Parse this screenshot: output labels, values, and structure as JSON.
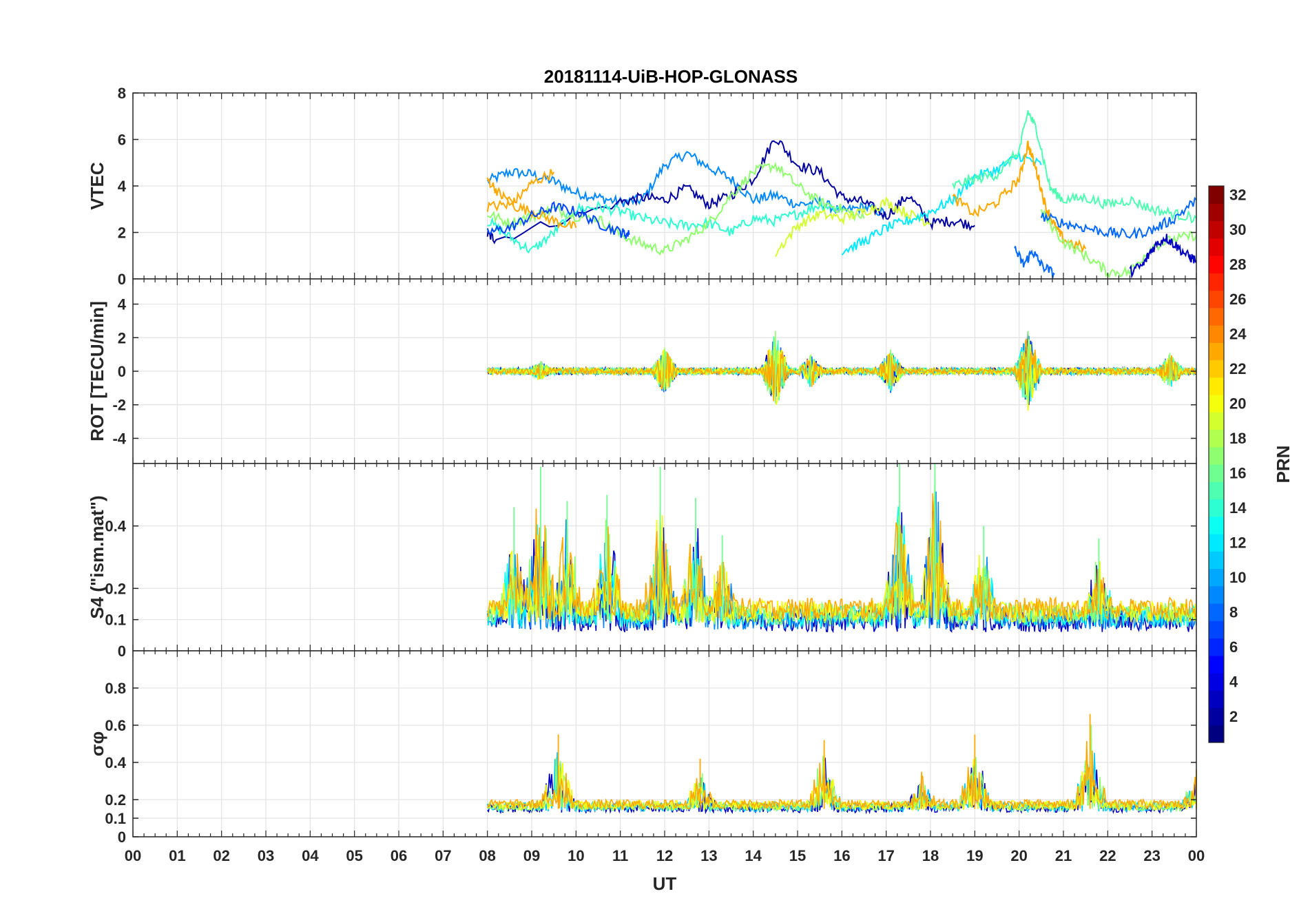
{
  "chart_data": {
    "type": "line",
    "title": "20181114-UiB-HOP-GLONASS",
    "xlabel": "UT",
    "x_ticks": [
      "00",
      "01",
      "02",
      "03",
      "04",
      "05",
      "06",
      "07",
      "08",
      "09",
      "10",
      "11",
      "12",
      "13",
      "14",
      "15",
      "16",
      "17",
      "18",
      "19",
      "20",
      "21",
      "22",
      "23",
      "00"
    ],
    "xlim": [
      0,
      24
    ],
    "grid": true,
    "panels": [
      {
        "name": "vtec",
        "ylabel": "VTEC",
        "ylim": [
          0,
          8
        ],
        "yticks": [
          0,
          2,
          4,
          6,
          8
        ],
        "series": [
          {
            "prn": 9,
            "x": [
              8.0,
              8.5,
              9.0,
              9.5,
              10.0,
              10.5,
              11.0,
              11.5,
              12.0,
              12.5,
              13.0,
              13.5,
              14.0,
              14.5,
              15.0,
              15.5,
              16.0,
              16.5,
              17.0
            ],
            "y": [
              4.2,
              4.6,
              4.5,
              4.2,
              3.7,
              3.5,
              3.3,
              3.4,
              4.9,
              5.4,
              4.8,
              4.3,
              3.4,
              3.6,
              3.2,
              3.3,
              2.9,
              3.1,
              2.8
            ]
          },
          {
            "prn": 2,
            "x": [
              8.0,
              8.2,
              11.0,
              11.5,
              12.0,
              12.5,
              13.0,
              13.5,
              14.0,
              14.5,
              15.0,
              15.5,
              16.0,
              16.5,
              17.0,
              17.5,
              18.0,
              18.5,
              19.0
            ],
            "y": [
              1.9,
              1.7,
              3.3,
              3.5,
              3.4,
              3.9,
              3.2,
              3.6,
              4.3,
              6.1,
              4.9,
              4.6,
              3.5,
              3.3,
              2.7,
              3.6,
              2.4,
              2.5,
              2.3
            ]
          },
          {
            "prn": 14,
            "x": [
              8.0,
              8.5,
              9.0,
              9.5,
              10.0,
              10.5,
              11.0,
              11.5,
              12.0,
              12.5,
              13.0,
              13.5,
              14.0,
              14.5,
              15.0,
              15.5,
              16.0
            ],
            "y": [
              2.5,
              1.8,
              1.2,
              2.0,
              3.0,
              3.1,
              2.9,
              2.6,
              2.4,
              2.3,
              2.4,
              2.0,
              2.6,
              2.5,
              2.8,
              3.2,
              3.0
            ]
          },
          {
            "prn": 17,
            "x": [
              8.0,
              8.5,
              9.0,
              9.5,
              10.0,
              10.5,
              11.0,
              11.5,
              12.0,
              12.5,
              13.0,
              13.5,
              14.0,
              14.5,
              15.0,
              15.5,
              16.0,
              16.5
            ],
            "y": [
              2.8,
              2.4,
              2.7,
              3.0,
              2.7,
              2.6,
              1.9,
              1.5,
              1.2,
              1.7,
              2.4,
              3.6,
              4.6,
              4.9,
              4.0,
              3.3,
              3.0,
              2.6
            ]
          },
          {
            "prn": 23,
            "x": [
              8.0,
              8.3,
              8.6,
              9.0,
              9.5
            ],
            "y": [
              4.3,
              3.6,
              3.3,
              4.1,
              4.6
            ]
          },
          {
            "prn": 23,
            "x": [
              8.0,
              8.5,
              9.0,
              9.5,
              10.0
            ],
            "y": [
              3.1,
              3.2,
              2.9,
              2.5,
              2.2
            ]
          },
          {
            "prn": 7,
            "x": [
              8.0,
              8.5,
              9.0,
              9.5,
              10.0,
              10.5,
              11.0,
              11.2
            ],
            "y": [
              2.0,
              2.2,
              2.7,
              3.1,
              2.9,
              2.4,
              2.0,
              1.9
            ]
          },
          {
            "prn": 19,
            "x": [
              14.5,
              15.0,
              15.5,
              16.0,
              16.5,
              17.0,
              17.5,
              18.0
            ],
            "y": [
              1.1,
              2.3,
              2.8,
              2.6,
              2.9,
              3.3,
              2.8,
              2.4
            ]
          },
          {
            "prn": 12,
            "x": [
              16.0,
              16.5,
              17.0,
              17.5,
              18.0,
              18.5,
              19.0,
              19.5,
              20.0,
              20.5
            ],
            "y": [
              1.2,
              1.6,
              2.2,
              2.5,
              2.9,
              3.4,
              4.4,
              4.7,
              5.3,
              4.9
            ]
          },
          {
            "prn": 15,
            "x": [
              18.5,
              19.0,
              19.5,
              20.0,
              20.2,
              20.4,
              20.7,
              21.0,
              21.5,
              22.0,
              22.5,
              23.0,
              23.5,
              24.0
            ],
            "y": [
              4.0,
              4.3,
              4.5,
              5.5,
              7.2,
              6.4,
              3.9,
              3.4,
              3.5,
              3.2,
              3.4,
              3.0,
              2.8,
              2.6
            ]
          },
          {
            "prn": 23,
            "x": [
              18.5,
              19.0,
              19.5,
              20.0,
              20.2,
              20.4,
              20.6,
              20.8,
              21.0,
              21.5
            ],
            "y": [
              3.5,
              2.8,
              3.3,
              4.3,
              5.8,
              4.6,
              3.1,
              2.3,
              1.7,
              1.3
            ]
          },
          {
            "prn": 17,
            "x": [
              20.5,
              21.0,
              21.5,
              22.0,
              22.5,
              23.0,
              23.5,
              24.0
            ],
            "y": [
              2.9,
              1.6,
              1.0,
              0.3,
              0.3,
              1.4,
              1.7,
              1.9
            ]
          },
          {
            "prn": 8,
            "x": [
              19.9,
              20.1,
              20.3,
              20.5,
              20.8
            ],
            "y": [
              1.3,
              0.6,
              1.2,
              0.6,
              0.2
            ]
          },
          {
            "prn": 8,
            "x": [
              20.5,
              21.0,
              21.5,
              22.0,
              22.5,
              23.0,
              23.5,
              24.0
            ],
            "y": [
              2.7,
              2.4,
              2.2,
              2.0,
              1.9,
              2.1,
              2.6,
              3.4
            ]
          },
          {
            "prn": 3,
            "x": [
              22.5,
              22.8,
              23.0,
              23.3,
              23.5,
              23.8,
              24.0
            ],
            "y": [
              0.3,
              0.6,
              1.3,
              1.8,
              1.5,
              1.0,
              0.8
            ]
          }
        ]
      },
      {
        "name": "rot",
        "ylabel": "ROT [TECU/min]",
        "ylim": [
          -5.5,
          5.5
        ],
        "yticks": [
          -4,
          -2,
          0,
          2,
          4
        ],
        "bursts": [
          {
            "x": 9.2,
            "amplitude": 0.6
          },
          {
            "x": 12.0,
            "amplitude": 1.4
          },
          {
            "x": 14.5,
            "amplitude": 2.4
          },
          {
            "x": 15.3,
            "amplitude": 1.0
          },
          {
            "x": 17.1,
            "amplitude": 1.3
          },
          {
            "x": 20.2,
            "amplitude": 2.4
          },
          {
            "x": 23.4,
            "amplitude": 1.1
          }
        ]
      },
      {
        "name": "s4",
        "ylabel": "S4 (\"ism.mat\")",
        "ylim": [
          0,
          0.6
        ],
        "yticks": [
          0,
          0.1,
          0.2,
          0.4
        ],
        "peaks": [
          {
            "x": 8.6,
            "value": 0.46
          },
          {
            "x": 9.2,
            "value": 0.59
          },
          {
            "x": 9.8,
            "value": 0.48
          },
          {
            "x": 10.7,
            "value": 0.5
          },
          {
            "x": 11.9,
            "value": 0.59
          },
          {
            "x": 12.7,
            "value": 0.49
          },
          {
            "x": 13.3,
            "value": 0.37
          },
          {
            "x": 17.3,
            "value": 0.6
          },
          {
            "x": 18.1,
            "value": 0.6
          },
          {
            "x": 19.2,
            "value": 0.4
          },
          {
            "x": 21.8,
            "value": 0.36
          }
        ]
      },
      {
        "name": "sigma_phi",
        "ylabel": "σφ",
        "ylim": [
          0,
          1.0
        ],
        "yticks": [
          0,
          0.1,
          0.2,
          0.4,
          0.6,
          0.8
        ],
        "peaks": [
          {
            "x": 9.6,
            "value": 0.55
          },
          {
            "x": 12.8,
            "value": 0.42
          },
          {
            "x": 15.6,
            "value": 0.52
          },
          {
            "x": 17.8,
            "value": 0.35
          },
          {
            "x": 19.0,
            "value": 0.55
          },
          {
            "x": 21.6,
            "value": 0.66
          },
          {
            "x": 24.0,
            "value": 0.36
          }
        ]
      }
    ],
    "colorbar": {
      "label": "PRN",
      "range": [
        1,
        32
      ],
      "ticks": [
        2,
        4,
        6,
        8,
        10,
        12,
        14,
        16,
        18,
        20,
        22,
        24,
        26,
        28,
        30,
        32
      ],
      "colormap": "jet"
    }
  }
}
